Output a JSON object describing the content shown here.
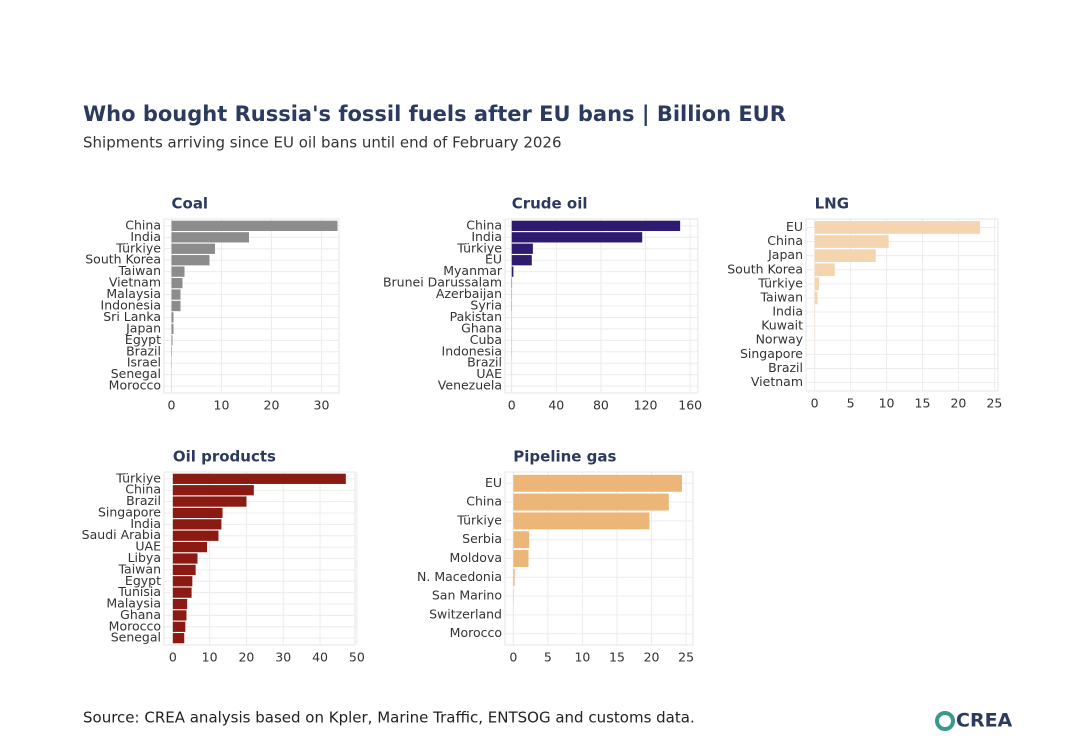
{
  "title": "Who bought Russia's fossil fuels after EU bans | Billion EUR",
  "subtitle": "Shipments arriving since EU oil bans until end of February 2026",
  "source": "Source: CREA analysis based on Kpler, Marine Traffic, ENTSOG and customs data.",
  "logo": "CREA",
  "chart_data": [
    {
      "type": "bar",
      "title": "Coal",
      "categories": [
        "China",
        "India",
        "Türkiye",
        "South Korea",
        "Taiwan",
        "Vietnam",
        "Malaysia",
        "Indonesia",
        "Sri Lanka",
        "Japan",
        "Egypt",
        "Brazil",
        "Israel",
        "Senegal",
        "Morocco"
      ],
      "values": [
        33.2,
        15.5,
        8.7,
        7.6,
        2.6,
        2.2,
        1.8,
        1.8,
        0.4,
        0.4,
        0.2,
        0.1,
        0.05,
        0.03,
        0.02
      ],
      "color": "#8c8c8c",
      "xlim": [
        -1.5,
        33.5
      ],
      "xticks": [
        0,
        10,
        20,
        30
      ],
      "grid": true
    },
    {
      "type": "bar",
      "title": "Crude oil",
      "categories": [
        "China",
        "India",
        "Türkiye",
        "EU",
        "Myanmar",
        "Brunei Darussalam",
        "Azerbaijan",
        "Syria",
        "Pakistan",
        "Ghana",
        "Cuba",
        "Indonesia",
        "Brazil",
        "UAE",
        "Venezuela"
      ],
      "values": [
        151,
        117,
        19,
        18,
        1.5,
        0.3,
        0.2,
        0.2,
        0.1,
        0.1,
        0.1,
        0.1,
        0.05,
        0.05,
        0.03
      ],
      "color": "#2e1a6e",
      "xlim": [
        -6,
        167
      ],
      "xticks": [
        0,
        40,
        80,
        120,
        160
      ],
      "grid": true
    },
    {
      "type": "bar",
      "title": "LNG",
      "categories": [
        "EU",
        "China",
        "Japan",
        "South Korea",
        "Türkiye",
        "Taiwan",
        "India",
        "Kuwait",
        "Norway",
        "Singapore",
        "Brazil",
        "Vietnam"
      ],
      "values": [
        23,
        10.3,
        8.5,
        2.8,
        0.6,
        0.4,
        0.05,
        0.04,
        0.03,
        0.02,
        0.02,
        0.01
      ],
      "color": "#f5d5b0",
      "xlim": [
        -1.2,
        25.5
      ],
      "xticks": [
        0,
        5,
        10,
        15,
        20,
        25
      ],
      "grid": true
    },
    {
      "type": "bar",
      "title": "Oil products",
      "categories": [
        "Türkiye",
        "China",
        "Brazil",
        "Singapore",
        "India",
        "Saudi Arabia",
        "UAE",
        "Libya",
        "Taiwan",
        "Egypt",
        "Tunisia",
        "Malaysia",
        "Ghana",
        "Morocco",
        "Senegal"
      ],
      "values": [
        47,
        22,
        20,
        13.5,
        13.2,
        12.4,
        9.3,
        6.7,
        6.2,
        5.3,
        5.1,
        3.9,
        3.7,
        3.4,
        3.1
      ],
      "color": "#8b1a12",
      "xlim": [
        -2.4,
        49.5
      ],
      "xticks": [
        0,
        10,
        20,
        30,
        40,
        50
      ],
      "grid": true
    },
    {
      "type": "bar",
      "title": "Pipeline gas",
      "categories": [
        "EU",
        "China",
        "Türkiye",
        "Serbia",
        "Moldova",
        "N. Macedonia",
        "San Marino",
        "Switzerland",
        "Morocco"
      ],
      "values": [
        24.4,
        22.5,
        19.7,
        2.3,
        2.2,
        0.2,
        0.05,
        0.02,
        0.01
      ],
      "color": "#ebb678",
      "xlim": [
        -1.2,
        26
      ],
      "xticks": [
        0,
        5,
        10,
        15,
        20,
        25
      ],
      "grid": true
    }
  ]
}
